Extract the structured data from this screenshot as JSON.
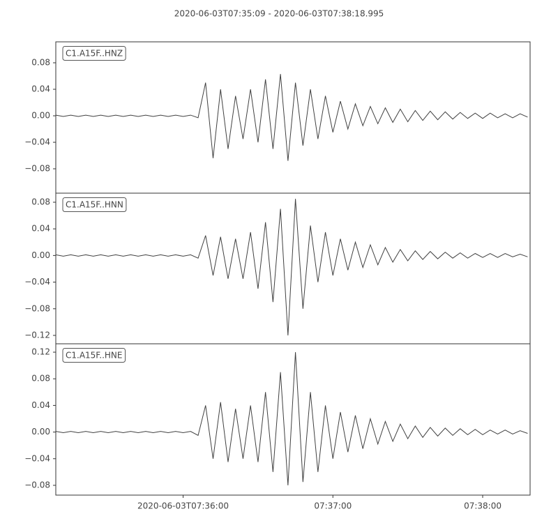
{
  "title": "2020-06-03T07:35:09  -  2020-06-03T07:38:18.995",
  "chart_data": [
    {
      "type": "line",
      "x": [
        "2020-06-03T07:35:09",
        "2020-06-03T07:35:12",
        "2020-06-03T07:35:15",
        "2020-06-03T07:35:18",
        "2020-06-03T07:35:21",
        "2020-06-03T07:35:24",
        "2020-06-03T07:35:27",
        "2020-06-03T07:35:30",
        "2020-06-03T07:35:33",
        "2020-06-03T07:35:36",
        "2020-06-03T07:35:39",
        "2020-06-03T07:35:42",
        "2020-06-03T07:35:45",
        "2020-06-03T07:35:48",
        "2020-06-03T07:35:51",
        "2020-06-03T07:35:54",
        "2020-06-03T07:35:57",
        "2020-06-03T07:36:00",
        "2020-06-03T07:36:03",
        "2020-06-03T07:36:06",
        "2020-06-03T07:36:09",
        "2020-06-03T07:36:12",
        "2020-06-03T07:36:15",
        "2020-06-03T07:36:18",
        "2020-06-03T07:36:21",
        "2020-06-03T07:36:24",
        "2020-06-03T07:36:27",
        "2020-06-03T07:36:30",
        "2020-06-03T07:36:33",
        "2020-06-03T07:36:36",
        "2020-06-03T07:36:39",
        "2020-06-03T07:36:42",
        "2020-06-03T07:36:45",
        "2020-06-03T07:36:48",
        "2020-06-03T07:36:51",
        "2020-06-03T07:36:54",
        "2020-06-03T07:36:57",
        "2020-06-03T07:37:00",
        "2020-06-03T07:37:03",
        "2020-06-03T07:37:06",
        "2020-06-03T07:37:09",
        "2020-06-03T07:37:12",
        "2020-06-03T07:37:15",
        "2020-06-03T07:37:18",
        "2020-06-03T07:37:21",
        "2020-06-03T07:37:24",
        "2020-06-03T07:37:27",
        "2020-06-03T07:37:30",
        "2020-06-03T07:37:33",
        "2020-06-03T07:37:36",
        "2020-06-03T07:37:39",
        "2020-06-03T07:37:42",
        "2020-06-03T07:37:45",
        "2020-06-03T07:37:48",
        "2020-06-03T07:37:51",
        "2020-06-03T07:37:54",
        "2020-06-03T07:37:57",
        "2020-06-03T07:38:00",
        "2020-06-03T07:38:03",
        "2020-06-03T07:38:06",
        "2020-06-03T07:38:09",
        "2020-06-03T07:38:12",
        "2020-06-03T07:38:15",
        "2020-06-03T07:38:18"
      ],
      "series": [
        {
          "name": "C1.A15F..HNZ",
          "color": "#404040",
          "values": [
            0.001,
            -0.001,
            0.001,
            -0.001,
            0.001,
            -0.001,
            0.001,
            -0.001,
            0.001,
            -0.001,
            0.001,
            -0.001,
            0.001,
            -0.001,
            0.001,
            -0.001,
            0.001,
            -0.001,
            0.001,
            -0.003,
            0.05,
            -0.064,
            0.04,
            -0.05,
            0.03,
            -0.035,
            0.04,
            -0.04,
            0.055,
            -0.05,
            0.063,
            -0.068,
            0.05,
            -0.045,
            0.04,
            -0.035,
            0.03,
            -0.025,
            0.022,
            -0.02,
            0.018,
            -0.015,
            0.014,
            -0.012,
            0.012,
            -0.01,
            0.01,
            -0.009,
            0.008,
            -0.007,
            0.007,
            -0.006,
            0.006,
            -0.005,
            0.005,
            -0.004,
            0.004,
            -0.004,
            0.004,
            -0.003,
            0.003,
            -0.003,
            0.003,
            -0.002
          ]
        }
      ],
      "xlim": [
        "2020-06-03T07:35:09",
        "2020-06-03T07:38:18.995"
      ],
      "ylim": [
        -0.1168,
        0.1116
      ],
      "yticks": [
        {
          "value": -0.08,
          "label": "−0.08"
        },
        {
          "value": -0.04,
          "label": "−0.04"
        },
        {
          "value": 0,
          "label": "0.00"
        },
        0.04,
        0.08
      ]
    },
    {
      "type": "line",
      "x": [
        "2020-06-03T07:35:09",
        "2020-06-03T07:35:12",
        "2020-06-03T07:35:15",
        "2020-06-03T07:35:18",
        "2020-06-03T07:35:21",
        "2020-06-03T07:35:24",
        "2020-06-03T07:35:27",
        "2020-06-03T07:35:30",
        "2020-06-03T07:35:33",
        "2020-06-03T07:35:36",
        "2020-06-03T07:35:39",
        "2020-06-03T07:35:42",
        "2020-06-03T07:35:45",
        "2020-06-03T07:35:48",
        "2020-06-03T07:35:51",
        "2020-06-03T07:35:54",
        "2020-06-03T07:35:57",
        "2020-06-03T07:36:00",
        "2020-06-03T07:36:03",
        "2020-06-03T07:36:06",
        "2020-06-03T07:36:09",
        "2020-06-03T07:36:12",
        "2020-06-03T07:36:15",
        "2020-06-03T07:36:18",
        "2020-06-03T07:36:21",
        "2020-06-03T07:36:24",
        "2020-06-03T07:36:27",
        "2020-06-03T07:36:30",
        "2020-06-03T07:36:33",
        "2020-06-03T07:36:36",
        "2020-06-03T07:36:39",
        "2020-06-03T07:36:42",
        "2020-06-03T07:36:45",
        "2020-06-03T07:36:48",
        "2020-06-03T07:36:51",
        "2020-06-03T07:36:54",
        "2020-06-03T07:36:57",
        "2020-06-03T07:37:00",
        "2020-06-03T07:37:03",
        "2020-06-03T07:37:06",
        "2020-06-03T07:37:09",
        "2020-06-03T07:37:12",
        "2020-06-03T07:37:15",
        "2020-06-03T07:37:18",
        "2020-06-03T07:37:21",
        "2020-06-03T07:37:24",
        "2020-06-03T07:37:27",
        "2020-06-03T07:37:30",
        "2020-06-03T07:37:33",
        "2020-06-03T07:37:36",
        "2020-06-03T07:37:39",
        "2020-06-03T07:37:42",
        "2020-06-03T07:37:45",
        "2020-06-03T07:37:48",
        "2020-06-03T07:37:51",
        "2020-06-03T07:37:54",
        "2020-06-03T07:37:57",
        "2020-06-03T07:38:00",
        "2020-06-03T07:38:03",
        "2020-06-03T07:38:06",
        "2020-06-03T07:38:09",
        "2020-06-03T07:38:12",
        "2020-06-03T07:38:15",
        "2020-06-03T07:38:18"
      ],
      "series": [
        {
          "name": "C1.A15F..HNN",
          "color": "#404040",
          "values": [
            0.001,
            -0.001,
            0.001,
            -0.001,
            0.001,
            -0.001,
            0.001,
            -0.001,
            0.001,
            -0.001,
            0.001,
            -0.001,
            0.001,
            -0.001,
            0.001,
            -0.001,
            0.001,
            -0.001,
            0.001,
            -0.004,
            0.03,
            -0.03,
            0.028,
            -0.035,
            0.025,
            -0.035,
            0.035,
            -0.05,
            0.05,
            -0.07,
            0.07,
            -0.12,
            0.085,
            -0.08,
            0.045,
            -0.04,
            0.035,
            -0.03,
            0.025,
            -0.022,
            0.02,
            -0.018,
            0.016,
            -0.014,
            0.012,
            -0.01,
            0.009,
            -0.008,
            0.007,
            -0.006,
            0.006,
            -0.005,
            0.005,
            -0.004,
            0.004,
            -0.004,
            0.003,
            -0.003,
            0.003,
            -0.003,
            0.003,
            -0.002,
            0.002,
            -0.002
          ]
        }
      ],
      "xlim": [
        "2020-06-03T07:35:09",
        "2020-06-03T07:38:18.995"
      ],
      "ylim": [
        -0.1326,
        0.0936
      ],
      "yticks": [
        {
          "value": -0.12,
          "label": "−0.12"
        },
        {
          "value": -0.08,
          "label": "−0.08"
        },
        {
          "value": -0.04,
          "label": "−0.04"
        },
        {
          "value": 0,
          "label": "0.00"
        },
        0.04,
        0.08
      ]
    },
    {
      "type": "line",
      "x": [
        "2020-06-03T07:35:09",
        "2020-06-03T07:35:12",
        "2020-06-03T07:35:15",
        "2020-06-03T07:35:18",
        "2020-06-03T07:35:21",
        "2020-06-03T07:35:24",
        "2020-06-03T07:35:27",
        "2020-06-03T07:35:30",
        "2020-06-03T07:35:33",
        "2020-06-03T07:35:36",
        "2020-06-03T07:35:39",
        "2020-06-03T07:35:42",
        "2020-06-03T07:35:45",
        "2020-06-03T07:35:48",
        "2020-06-03T07:35:51",
        "2020-06-03T07:35:54",
        "2020-06-03T07:35:57",
        "2020-06-03T07:36:00",
        "2020-06-03T07:36:03",
        "2020-06-03T07:36:06",
        "2020-06-03T07:36:09",
        "2020-06-03T07:36:12",
        "2020-06-03T07:36:15",
        "2020-06-03T07:36:18",
        "2020-06-03T07:36:21",
        "2020-06-03T07:36:24",
        "2020-06-03T07:36:27",
        "2020-06-03T07:36:30",
        "2020-06-03T07:36:33",
        "2020-06-03T07:36:36",
        "2020-06-03T07:36:39",
        "2020-06-03T07:36:42",
        "2020-06-03T07:36:45",
        "2020-06-03T07:36:48",
        "2020-06-03T07:36:51",
        "2020-06-03T07:36:54",
        "2020-06-03T07:36:57",
        "2020-06-03T07:37:00",
        "2020-06-03T07:37:03",
        "2020-06-03T07:37:06",
        "2020-06-03T07:37:09",
        "2020-06-03T07:37:12",
        "2020-06-03T07:37:15",
        "2020-06-03T07:37:18",
        "2020-06-03T07:37:21",
        "2020-06-03T07:37:24",
        "2020-06-03T07:37:27",
        "2020-06-03T07:37:30",
        "2020-06-03T07:37:33",
        "2020-06-03T07:37:36",
        "2020-06-03T07:37:39",
        "2020-06-03T07:37:42",
        "2020-06-03T07:37:45",
        "2020-06-03T07:37:48",
        "2020-06-03T07:37:51",
        "2020-06-03T07:37:54",
        "2020-06-03T07:37:57",
        "2020-06-03T07:38:00",
        "2020-06-03T07:38:03",
        "2020-06-03T07:38:06",
        "2020-06-03T07:38:09",
        "2020-06-03T07:38:12",
        "2020-06-03T07:38:15",
        "2020-06-03T07:38:18"
      ],
      "series": [
        {
          "name": "C1.A15F..HNE",
          "color": "#404040",
          "values": [
            0.001,
            -0.001,
            0.001,
            -0.001,
            0.001,
            -0.001,
            0.001,
            -0.001,
            0.001,
            -0.001,
            0.001,
            -0.001,
            0.001,
            -0.001,
            0.001,
            -0.001,
            0.001,
            -0.001,
            0.001,
            -0.005,
            0.04,
            -0.04,
            0.045,
            -0.045,
            0.035,
            -0.04,
            0.04,
            -0.045,
            0.06,
            -0.06,
            0.09,
            -0.08,
            0.12,
            -0.075,
            0.06,
            -0.06,
            0.04,
            -0.04,
            0.03,
            -0.03,
            0.025,
            -0.025,
            0.02,
            -0.018,
            0.016,
            -0.014,
            0.012,
            -0.01,
            0.009,
            -0.008,
            0.007,
            -0.006,
            0.006,
            -0.005,
            0.005,
            -0.004,
            0.004,
            -0.004,
            0.003,
            -0.003,
            0.003,
            -0.003,
            0.002,
            -0.002
          ]
        }
      ],
      "xlim": [
        "2020-06-03T07:35:09",
        "2020-06-03T07:38:18.995"
      ],
      "xticks": [
        "2020-06-03T07:36:00",
        {
          "value": "2020-06-03T07:37:00",
          "label": "07:37:00"
        },
        {
          "value": "2020-06-03T07:38:00",
          "label": "07:38:00"
        }
      ],
      "ylim": [
        -0.0947,
        0.1326
      ],
      "yticks": [
        {
          "value": -0.08,
          "label": "−0.08"
        },
        {
          "value": -0.04,
          "label": "−0.04"
        },
        {
          "value": 0,
          "label": "0.00"
        },
        0.04,
        0.08,
        0.12
      ]
    }
  ]
}
